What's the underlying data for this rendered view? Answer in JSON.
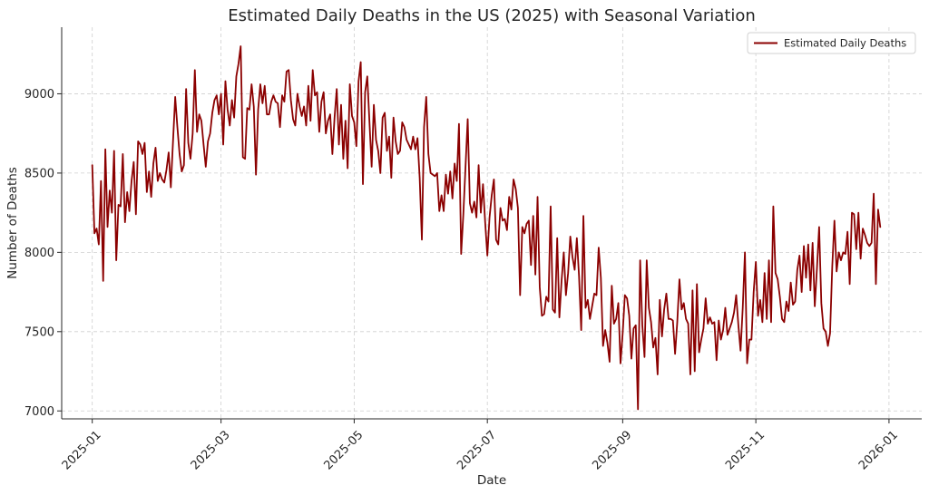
{
  "chart_data": {
    "type": "line",
    "title": "Estimated Daily Deaths in the US (2025) with Seasonal Variation",
    "xlabel": "Date",
    "ylabel": "Number of Deaths",
    "xlim": [
      -14,
      380
    ],
    "ylim": [
      6950,
      9420
    ],
    "xticks": [
      {
        "label": "2025-01",
        "day": 0
      },
      {
        "label": "2025-03",
        "day": 59
      },
      {
        "label": "2025-05",
        "day": 120
      },
      {
        "label": "2025-07",
        "day": 181
      },
      {
        "label": "2025-09",
        "day": 243
      },
      {
        "label": "2025-11",
        "day": 304
      },
      {
        "label": "2026-01",
        "day": 365
      }
    ],
    "yticks": [
      7000,
      7500,
      8000,
      8500,
      9000
    ],
    "grid": true,
    "legend_position": "top-right",
    "series": [
      {
        "name": "Estimated Daily Deaths",
        "color": "#8b0000",
        "x_start_day": 0,
        "x_step_days": 1,
        "values": [
          8550,
          8120,
          8150,
          8050,
          8450,
          7820,
          8650,
          8160,
          8390,
          8250,
          8640,
          7950,
          8300,
          8290,
          8620,
          8190,
          8380,
          8260,
          8450,
          8570,
          8240,
          8700,
          8680,
          8620,
          8690,
          8380,
          8510,
          8350,
          8560,
          8660,
          8450,
          8500,
          8460,
          8440,
          8520,
          8630,
          8410,
          8700,
          8980,
          8790,
          8620,
          8510,
          8550,
          9030,
          8690,
          8590,
          8750,
          9150,
          8760,
          8870,
          8830,
          8680,
          8540,
          8700,
          8750,
          8880,
          8960,
          8990,
          8870,
          9000,
          8680,
          9080,
          8900,
          8800,
          8960,
          8850,
          9110,
          9190,
          9300,
          8600,
          8590,
          8910,
          8900,
          9060,
          8920,
          8490,
          8900,
          9060,
          8940,
          9050,
          8870,
          8870,
          8950,
          8990,
          8950,
          8940,
          8790,
          8990,
          8950,
          9140,
          9150,
          8960,
          8840,
          8800,
          9000,
          8920,
          8860,
          8920,
          8800,
          9050,
          8830,
          9150,
          8990,
          9010,
          8760,
          8950,
          9010,
          8750,
          8830,
          8870,
          8620,
          8850,
          9030,
          8680,
          8930,
          8590,
          8830,
          8530,
          9060,
          8860,
          8820,
          8670,
          9080,
          9200,
          8430,
          9010,
          9110,
          8820,
          8540,
          8930,
          8710,
          8640,
          8500,
          8850,
          8880,
          8640,
          8730,
          8470,
          8850,
          8700,
          8620,
          8640,
          8820,
          8790,
          8710,
          8680,
          8650,
          8730,
          8650,
          8720,
          8470,
          8080,
          8790,
          8980,
          8620,
          8500,
          8490,
          8480,
          8500,
          8260,
          8360,
          8260,
          8490,
          8370,
          8510,
          8340,
          8560,
          8450,
          8810,
          7990,
          8240,
          8540,
          8840,
          8310,
          8250,
          8320,
          8220,
          8550,
          8250,
          8430,
          8190,
          7980,
          8220,
          8360,
          8460,
          8080,
          8050,
          8280,
          8200,
          8210,
          8140,
          8350,
          8270,
          8460,
          8400,
          8280,
          7730,
          8160,
          8120,
          8180,
          8200,
          7920,
          8230,
          7860,
          8350,
          7780,
          7600,
          7610,
          7720,
          7690,
          8290,
          7640,
          7620,
          8090,
          7590,
          7820,
          8000,
          7730,
          7870,
          8100,
          7970,
          7890,
          8090,
          7850,
          7510,
          8230,
          7650,
          7700,
          7580,
          7660,
          7740,
          7730,
          8030,
          7840,
          7410,
          7510,
          7430,
          7310,
          7790,
          7550,
          7580,
          7680,
          7300,
          7490,
          7730,
          7710,
          7600,
          7330,
          7520,
          7540,
          7010,
          7950,
          7540,
          7340,
          7950,
          7650,
          7560,
          7400,
          7460,
          7230,
          7700,
          7470,
          7640,
          7740,
          7580,
          7580,
          7570,
          7360,
          7560,
          7830,
          7640,
          7680,
          7580,
          7550,
          7230,
          7760,
          7250,
          7800,
          7370,
          7450,
          7520,
          7710,
          7550,
          7590,
          7550,
          7560,
          7320,
          7570,
          7450,
          7510,
          7650,
          7480,
          7520,
          7560,
          7620,
          7730,
          7540,
          7380,
          7650,
          8000,
          7300,
          7450,
          7450,
          7750,
          7940,
          7600,
          7700,
          7560,
          7870,
          7580,
          7950,
          7560,
          8290,
          7870,
          7830,
          7720,
          7580,
          7560,
          7690,
          7630,
          7810,
          7670,
          7690,
          7890,
          7980,
          7750,
          8040,
          7840,
          8050,
          7760,
          8060,
          7660,
          7900,
          8160,
          7680,
          7520,
          7500,
          7410,
          7490,
          7910,
          8200,
          7880,
          8000,
          7950,
          8000,
          7990,
          8130,
          7800,
          8250,
          8240,
          8020,
          8250,
          7960,
          8150,
          8110,
          8060,
          8040,
          8060,
          8370,
          7800,
          8270,
          8160
        ]
      }
    ]
  }
}
